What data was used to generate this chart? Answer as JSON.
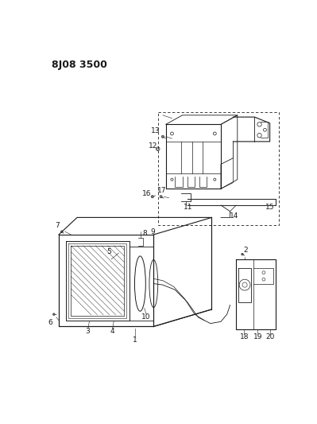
{
  "title": "8J08 3500",
  "bg_color": "#ffffff",
  "line_color": "#1a1a1a",
  "title_fontsize": 9,
  "label_fontsize": 6.5,
  "fig_width": 3.99,
  "fig_height": 5.33,
  "dpi": 100
}
